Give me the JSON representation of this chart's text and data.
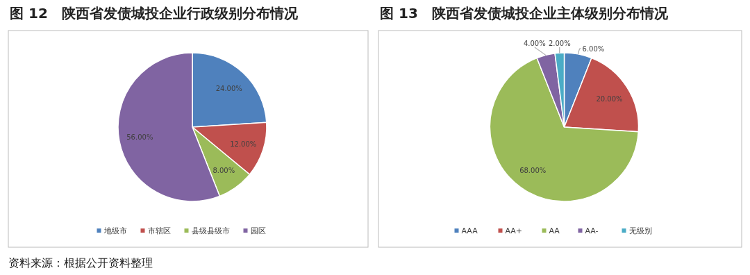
{
  "chart_data": [
    {
      "type": "pie",
      "title": "图 12　陕西省发债城投企业行政级别分布情况",
      "categories": [
        "地级市",
        "市辖区",
        "县级县级市",
        "园区"
      ],
      "values": [
        24,
        12,
        8,
        56
      ],
      "value_labels": [
        "24.00%",
        "12.00%",
        "8.00%",
        "56.00%"
      ],
      "colors": [
        "#4f81bd",
        "#c0504d",
        "#9bbb59",
        "#8064a2"
      ],
      "legend": "bottom",
      "annotations": [
        "资料来源：根据公开资料整理"
      ]
    },
    {
      "type": "pie",
      "title": "图 13　陕西省发债城投企业主体级别分布情况",
      "categories": [
        "AAA",
        "AA+",
        "AA",
        "AA-",
        "无级别"
      ],
      "values": [
        6,
        20,
        68,
        4,
        2
      ],
      "value_labels": [
        "6.00%",
        "20.00%",
        "68.00%",
        "4.00%",
        "2.00%"
      ],
      "colors": [
        "#4f81bd",
        "#c0504d",
        "#9bbb59",
        "#8064a2",
        "#4bacc6"
      ],
      "legend": "bottom"
    }
  ]
}
